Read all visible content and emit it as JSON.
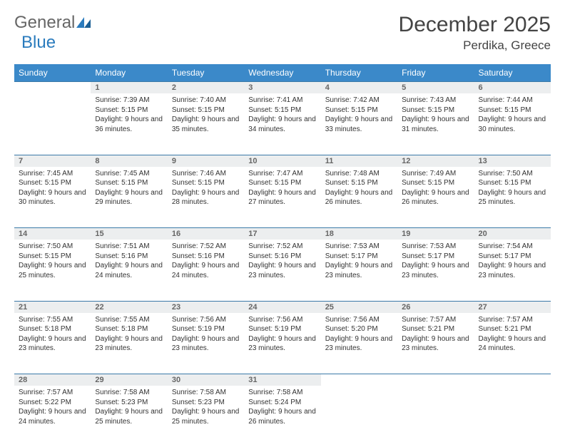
{
  "logo": {
    "part1": "General",
    "part2": "Blue"
  },
  "title": "December 2025",
  "location": "Perdika, Greece",
  "colors": {
    "header_bg": "#3b89c9",
    "header_text": "#ffffff",
    "daynum_bg": "#eceeef",
    "daynum_border": "#3b7aa8",
    "text": "#333333",
    "logo_gray": "#666666",
    "logo_blue": "#2a7bbd"
  },
  "daynames": [
    "Sunday",
    "Monday",
    "Tuesday",
    "Wednesday",
    "Thursday",
    "Friday",
    "Saturday"
  ],
  "weeks": [
    [
      null,
      {
        "n": "1",
        "sr": "7:39 AM",
        "ss": "5:15 PM",
        "dl": "9 hours and 36 minutes."
      },
      {
        "n": "2",
        "sr": "7:40 AM",
        "ss": "5:15 PM",
        "dl": "9 hours and 35 minutes."
      },
      {
        "n": "3",
        "sr": "7:41 AM",
        "ss": "5:15 PM",
        "dl": "9 hours and 34 minutes."
      },
      {
        "n": "4",
        "sr": "7:42 AM",
        "ss": "5:15 PM",
        "dl": "9 hours and 33 minutes."
      },
      {
        "n": "5",
        "sr": "7:43 AM",
        "ss": "5:15 PM",
        "dl": "9 hours and 31 minutes."
      },
      {
        "n": "6",
        "sr": "7:44 AM",
        "ss": "5:15 PM",
        "dl": "9 hours and 30 minutes."
      }
    ],
    [
      {
        "n": "7",
        "sr": "7:45 AM",
        "ss": "5:15 PM",
        "dl": "9 hours and 30 minutes."
      },
      {
        "n": "8",
        "sr": "7:45 AM",
        "ss": "5:15 PM",
        "dl": "9 hours and 29 minutes."
      },
      {
        "n": "9",
        "sr": "7:46 AM",
        "ss": "5:15 PM",
        "dl": "9 hours and 28 minutes."
      },
      {
        "n": "10",
        "sr": "7:47 AM",
        "ss": "5:15 PM",
        "dl": "9 hours and 27 minutes."
      },
      {
        "n": "11",
        "sr": "7:48 AM",
        "ss": "5:15 PM",
        "dl": "9 hours and 26 minutes."
      },
      {
        "n": "12",
        "sr": "7:49 AM",
        "ss": "5:15 PM",
        "dl": "9 hours and 26 minutes."
      },
      {
        "n": "13",
        "sr": "7:50 AM",
        "ss": "5:15 PM",
        "dl": "9 hours and 25 minutes."
      }
    ],
    [
      {
        "n": "14",
        "sr": "7:50 AM",
        "ss": "5:15 PM",
        "dl": "9 hours and 25 minutes."
      },
      {
        "n": "15",
        "sr": "7:51 AM",
        "ss": "5:16 PM",
        "dl": "9 hours and 24 minutes."
      },
      {
        "n": "16",
        "sr": "7:52 AM",
        "ss": "5:16 PM",
        "dl": "9 hours and 24 minutes."
      },
      {
        "n": "17",
        "sr": "7:52 AM",
        "ss": "5:16 PM",
        "dl": "9 hours and 23 minutes."
      },
      {
        "n": "18",
        "sr": "7:53 AM",
        "ss": "5:17 PM",
        "dl": "9 hours and 23 minutes."
      },
      {
        "n": "19",
        "sr": "7:53 AM",
        "ss": "5:17 PM",
        "dl": "9 hours and 23 minutes."
      },
      {
        "n": "20",
        "sr": "7:54 AM",
        "ss": "5:17 PM",
        "dl": "9 hours and 23 minutes."
      }
    ],
    [
      {
        "n": "21",
        "sr": "7:55 AM",
        "ss": "5:18 PM",
        "dl": "9 hours and 23 minutes."
      },
      {
        "n": "22",
        "sr": "7:55 AM",
        "ss": "5:18 PM",
        "dl": "9 hours and 23 minutes."
      },
      {
        "n": "23",
        "sr": "7:56 AM",
        "ss": "5:19 PM",
        "dl": "9 hours and 23 minutes."
      },
      {
        "n": "24",
        "sr": "7:56 AM",
        "ss": "5:19 PM",
        "dl": "9 hours and 23 minutes."
      },
      {
        "n": "25",
        "sr": "7:56 AM",
        "ss": "5:20 PM",
        "dl": "9 hours and 23 minutes."
      },
      {
        "n": "26",
        "sr": "7:57 AM",
        "ss": "5:21 PM",
        "dl": "9 hours and 23 minutes."
      },
      {
        "n": "27",
        "sr": "7:57 AM",
        "ss": "5:21 PM",
        "dl": "9 hours and 24 minutes."
      }
    ],
    [
      {
        "n": "28",
        "sr": "7:57 AM",
        "ss": "5:22 PM",
        "dl": "9 hours and 24 minutes."
      },
      {
        "n": "29",
        "sr": "7:58 AM",
        "ss": "5:23 PM",
        "dl": "9 hours and 25 minutes."
      },
      {
        "n": "30",
        "sr": "7:58 AM",
        "ss": "5:23 PM",
        "dl": "9 hours and 25 minutes."
      },
      {
        "n": "31",
        "sr": "7:58 AM",
        "ss": "5:24 PM",
        "dl": "9 hours and 26 minutes."
      },
      null,
      null,
      null
    ]
  ],
  "labels": {
    "sunrise": "Sunrise:",
    "sunset": "Sunset:",
    "daylight": "Daylight:"
  }
}
